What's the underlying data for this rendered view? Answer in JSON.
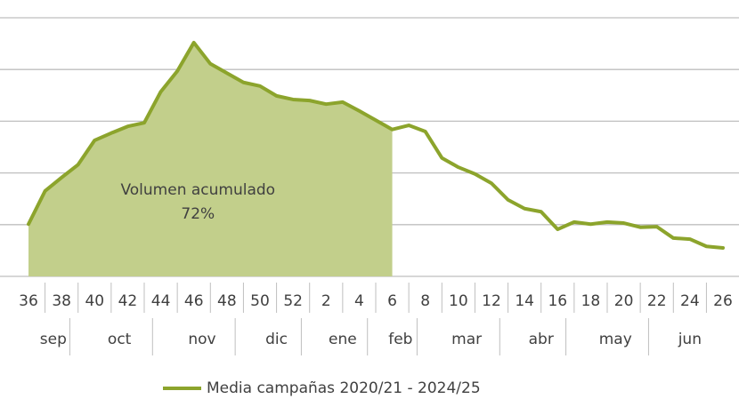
{
  "chart_data": {
    "type": "line",
    "categories": [
      "36",
      null,
      "38",
      null,
      "40",
      null,
      "42",
      null,
      "44",
      null,
      "46",
      null,
      "48",
      null,
      "50",
      null,
      "52",
      null,
      "2",
      null,
      "4",
      null,
      "6",
      null,
      "8",
      null,
      "10",
      null,
      "12",
      null,
      "14",
      null,
      "16",
      null,
      "18",
      null,
      "20",
      null,
      "22",
      null,
      "24",
      null,
      "26"
    ],
    "months": [
      {
        "label": "sep",
        "weeks": 3
      },
      {
        "label": "oct",
        "weeks": 5
      },
      {
        "label": "nov",
        "weeks": 5
      },
      {
        "label": "dic",
        "weeks": 4
      },
      {
        "label": "ene",
        "weeks": 4
      },
      {
        "label": "feb",
        "weeks": 3
      },
      {
        "label": "mar",
        "weeks": 5
      },
      {
        "label": "abr",
        "weeks": 4
      },
      {
        "label": "may",
        "weeks": 5
      },
      {
        "label": "jun",
        "weeks": 5
      }
    ],
    "series": [
      {
        "name": "Media campañas 2020/21 - 2024/25",
        "color": "#8ca42c",
        "values": [
          1.01,
          1.65,
          1.91,
          2.16,
          2.63,
          2.77,
          2.9,
          2.97,
          3.57,
          3.97,
          4.52,
          4.11,
          3.93,
          3.75,
          3.68,
          3.49,
          3.42,
          3.4,
          3.33,
          3.37,
          3.2,
          3.02,
          2.84,
          2.92,
          2.8,
          2.29,
          2.11,
          1.98,
          1.8,
          1.48,
          1.31,
          1.25,
          0.91,
          1.05,
          1.01,
          1.05,
          1.03,
          0.95,
          0.96,
          0.74,
          0.72,
          0.58,
          0.55
        ]
      }
    ],
    "shaded_through": "6",
    "shade_color": "#c2cf8b",
    "annotation": {
      "text": "Volumen acumulado",
      "value": 72,
      "value_label": "72%"
    },
    "ylim": [
      0,
      5
    ],
    "yticks": [
      0,
      1,
      2,
      3,
      4,
      5
    ],
    "grid": true,
    "legend": "bottom"
  }
}
